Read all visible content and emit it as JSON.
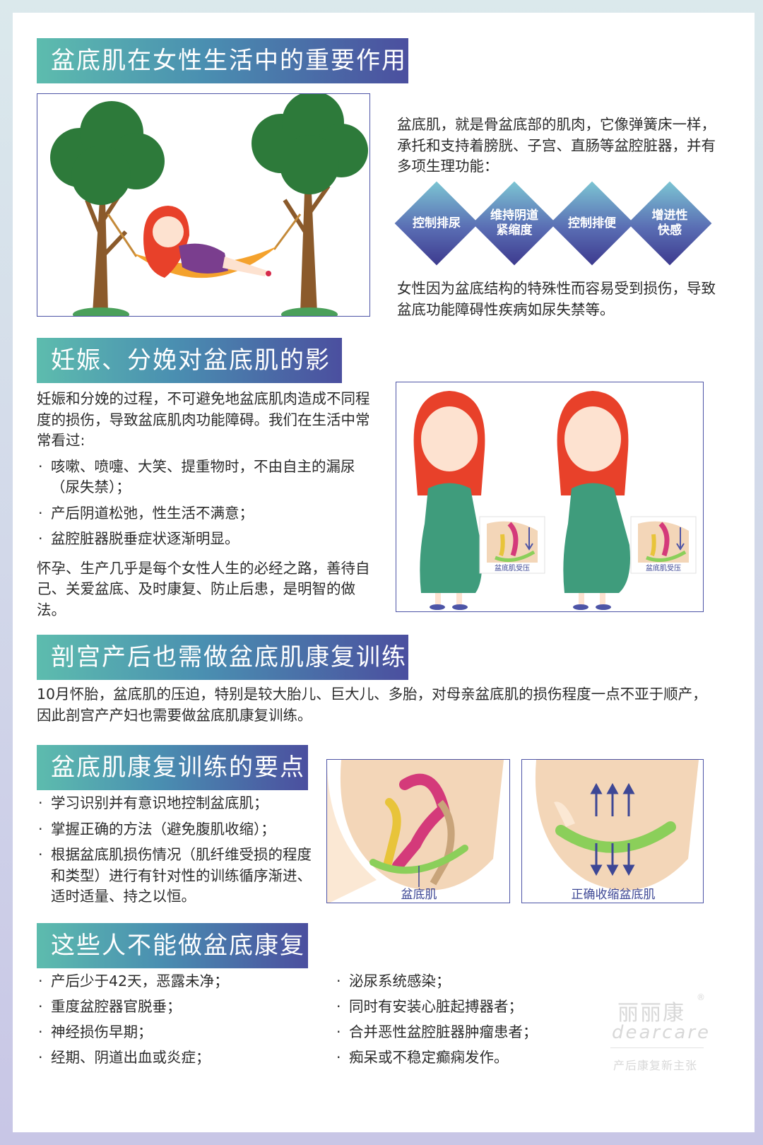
{
  "sections": {
    "s1": {
      "title": "盆底肌在女性生活中的重要作用",
      "intro": "盆底肌，就是骨盆底部的肌肉，它像弹簧床一样，承托和支持着膀胱、子宫、直肠等盆腔脏器，并有多项生理功能：",
      "functions": [
        "控制排尿",
        "维持阴道紧缩度",
        "控制排便",
        "增进性快感"
      ],
      "outro": "女性因为盆底结构的特殊性而容易受到损伤，导致盆底功能障碍性疾病如尿失禁等。"
    },
    "s2": {
      "title": "妊娠、分娩对盆底肌的影响",
      "intro": "妊娠和分娩的过程，不可避免地盆底肌肉造成不同程度的损伤，导致盆底肌肉功能障碍。我们在生活中常常看过:",
      "bullets": [
        "咳嗽、喷嚏、大笑、提重物时，不由自主的漏尿（尿失禁）；",
        "产后阴道松弛，性生活不满意；",
        "盆腔脏器脱垂症状逐渐明显。"
      ],
      "outro": "怀孕、生产几乎是每个女性人生的必经之路，善待自己、关爱盆底、及时康复、防止后患，是明智的做法。",
      "inset_caption_1": "盆底肌受压",
      "inset_caption_2": "盆底肌受压"
    },
    "s3": {
      "title": "剖宫产后也需做盆底肌康复训练",
      "body": "10月怀胎，盆底肌的压迫，特别是较大胎儿、巨大儿、多胎，对母亲盆底肌的损伤程度一点不亚于顺产，因此剖宫产产妇也需要做盆底肌康复训练。"
    },
    "s4": {
      "title": "盆底肌康复训练的要点",
      "bullets": [
        "学习识别并有意识地控制盆底肌；",
        "掌握正确的方法（避免腹肌收缩）；",
        "根据盆底肌损伤情况（肌纤维受损的程度和类型）进行有针对性的训练循序渐进、适时适量、持之以恒。"
      ],
      "caption_left": "盆底肌",
      "caption_right": "正确收缩盆底肌"
    },
    "s5": {
      "title": "这些人不能做盆底康复",
      "left": [
        "产后少于42天，恶露未净；",
        "重度盆腔器官脱垂；",
        "神经损伤早期；",
        "经期、阴道出血或炎症；"
      ],
      "right": [
        "泌尿系统感染；",
        "同时有安装心脏起搏器者；",
        "合并恶性盆腔脏器肿瘤患者；",
        "痴呆或不稳定癫痫发作。"
      ]
    }
  },
  "brand": {
    "cn": "丽丽康",
    "en": "dearcare",
    "slogan": "产后康复新主张",
    "reg": "®"
  },
  "colors": {
    "banner_start": "#5dbcae",
    "banner_end": "#4b4f9f",
    "frame": "#4d54a6",
    "hair": "#e8412a",
    "dress": "#3f9c7c",
    "tree": "#2d7a3a",
    "hammock": "#f4a22d"
  }
}
